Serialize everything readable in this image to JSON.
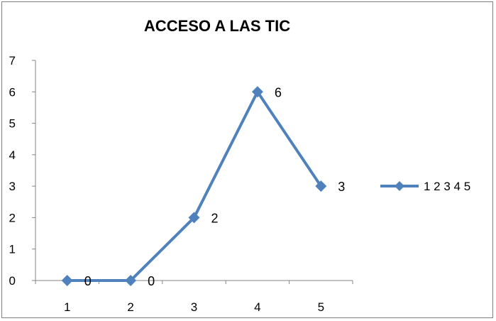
{
  "chart_data": {
    "type": "line",
    "title": "ACCESO A LAS TIC",
    "xlabel": "",
    "ylabel": "",
    "categories": [
      "1",
      "2",
      "3",
      "4",
      "5"
    ],
    "ylim": [
      0,
      7
    ],
    "yticks": [
      "0",
      "1",
      "2",
      "3",
      "4",
      "5",
      "6",
      "7"
    ],
    "grid": false,
    "legend_position": "right",
    "series": [
      {
        "name": "1 2 3 4 5",
        "values": [
          0,
          0,
          2,
          6,
          3
        ],
        "data_labels": [
          "0",
          "0",
          "2",
          "6",
          "3"
        ],
        "color": "#4f81bd",
        "marker": "diamond"
      }
    ]
  }
}
